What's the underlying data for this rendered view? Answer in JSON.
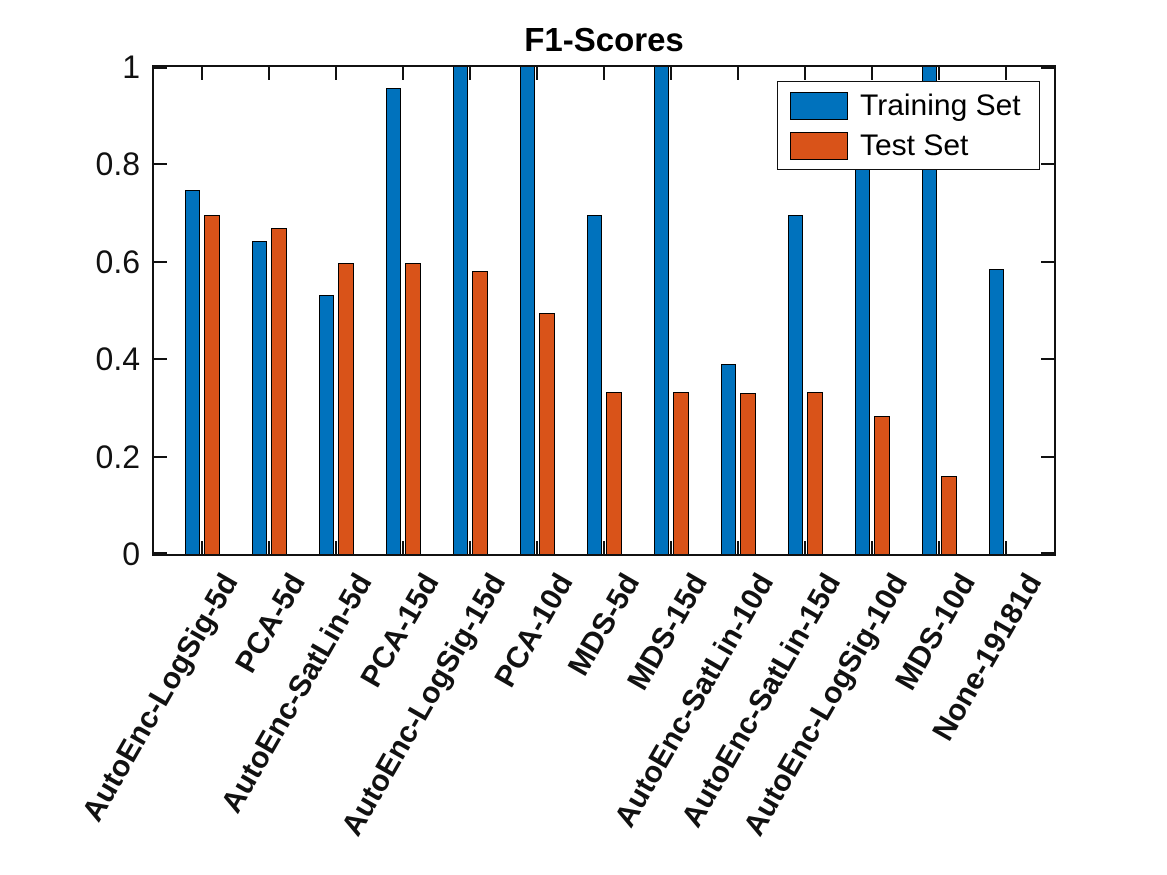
{
  "title": "F1-Scores",
  "colors": {
    "training": "#0072BD",
    "test": "#D95319",
    "axis": "#111111",
    "background": "#ffffff"
  },
  "legend": {
    "position": "top-right",
    "entries": [
      {
        "label": "Training Set",
        "color": "#0072BD"
      },
      {
        "label": "Test Set",
        "color": "#D95319"
      }
    ]
  },
  "chart_data": {
    "type": "bar",
    "title": "F1-Scores",
    "categories": [
      "AutoEnc-LogSig-5d",
      "PCA-5d",
      "AutoEnc-SatLin-5d",
      "PCA-15d",
      "AutoEnc-LogSig-15d",
      "PCA-10d",
      "MDS-5d",
      "MDS-15d",
      "AutoEnc-SatLin-10d",
      "AutoEnc-SatLin-15d",
      "AutoEnc-LogSig-10d",
      "MDS-10d",
      "None-19181d"
    ],
    "series": [
      {
        "name": "Training Set",
        "color": "#0072BD",
        "values": [
          0.748,
          0.643,
          0.531,
          0.957,
          1.0,
          1.0,
          0.696,
          1.0,
          0.391,
          0.696,
          0.8,
          1.0,
          0.585
        ]
      },
      {
        "name": "Test Set",
        "color": "#D95319",
        "values": [
          0.697,
          0.669,
          0.597,
          0.598,
          0.582,
          0.494,
          0.332,
          0.332,
          0.331,
          0.332,
          0.284,
          0.161,
          0
        ]
      }
    ],
    "xlabel": "",
    "ylabel": "",
    "ylim": [
      0,
      1
    ],
    "yticks": [
      0,
      0.2,
      0.4,
      0.6,
      0.8,
      1
    ],
    "ytick_labels": [
      "0",
      "0.2",
      "0.4",
      "0.6",
      "0.8",
      "1"
    ],
    "grid": false,
    "legend_position": "top-right",
    "x_label_rotation_deg": 60,
    "bar_edge_color": "#000000"
  }
}
